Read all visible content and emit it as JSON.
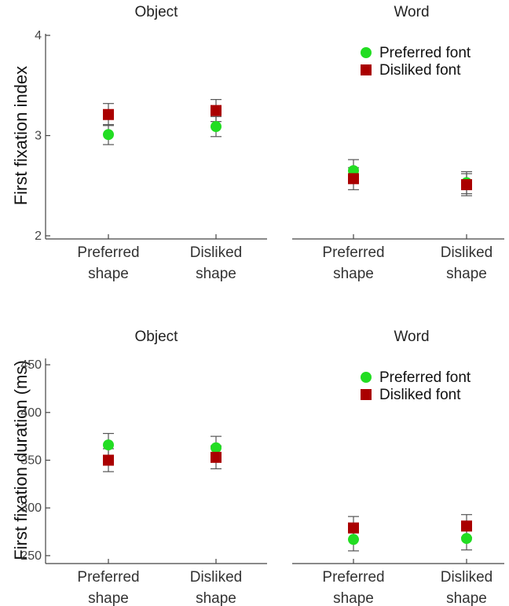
{
  "colors": {
    "preferred": "#22dd22",
    "disliked": "#aa0000"
  },
  "chart_data": [
    {
      "type": "scatter",
      "row": "top",
      "ylabel": "First fixation index",
      "ylim": [
        2,
        4
      ],
      "yticks": [
        2,
        3,
        4
      ],
      "categories": [
        "Preferred\nshape",
        "Disliked\nshape"
      ],
      "legend": {
        "location": "top-right",
        "entries": [
          {
            "name": "Preferred font",
            "marker": "circle",
            "color": "#22dd22"
          },
          {
            "name": "Disliked font",
            "marker": "square",
            "color": "#aa0000"
          }
        ]
      },
      "panels": [
        {
          "title": "Object",
          "series": [
            {
              "name": "Preferred font",
              "values": [
                3.01,
                3.09
              ],
              "err": [
                0.1,
                0.1
              ]
            },
            {
              "name": "Disliked font",
              "values": [
                3.21,
                3.25
              ],
              "err": [
                0.11,
                0.11
              ]
            }
          ]
        },
        {
          "title": "Word",
          "series": [
            {
              "name": "Preferred font",
              "values": [
                2.65,
                2.53
              ],
              "err": [
                0.11,
                0.11
              ]
            },
            {
              "name": "Disliked font",
              "values": [
                2.57,
                2.51
              ],
              "err": [
                0.11,
                0.11
              ]
            }
          ]
        }
      ]
    },
    {
      "type": "scatter",
      "row": "bottom",
      "ylabel": "First fixation duration (ms)",
      "ylim": [
        245,
        455
      ],
      "yticks": [
        250,
        300,
        350,
        400,
        450
      ],
      "categories": [
        "Preferred\nshape",
        "Disliked\nshape"
      ],
      "legend": {
        "location": "top-right",
        "entries": [
          {
            "name": "Preferred font",
            "marker": "circle",
            "color": "#22dd22"
          },
          {
            "name": "Disliked font",
            "marker": "square",
            "color": "#aa0000"
          }
        ]
      },
      "panels": [
        {
          "title": "Object",
          "series": [
            {
              "name": "Preferred font",
              "values": [
                366,
                363
              ],
              "err": [
                12,
                12
              ]
            },
            {
              "name": "Disliked font",
              "values": [
                350,
                353
              ],
              "err": [
                12,
                12
              ]
            }
          ]
        },
        {
          "title": "Word",
          "series": [
            {
              "name": "Preferred font",
              "values": [
                267,
                268
              ],
              "err": [
                12,
                12
              ]
            },
            {
              "name": "Disliked font",
              "values": [
                279,
                281
              ],
              "err": [
                12,
                12
              ]
            }
          ]
        }
      ]
    }
  ]
}
